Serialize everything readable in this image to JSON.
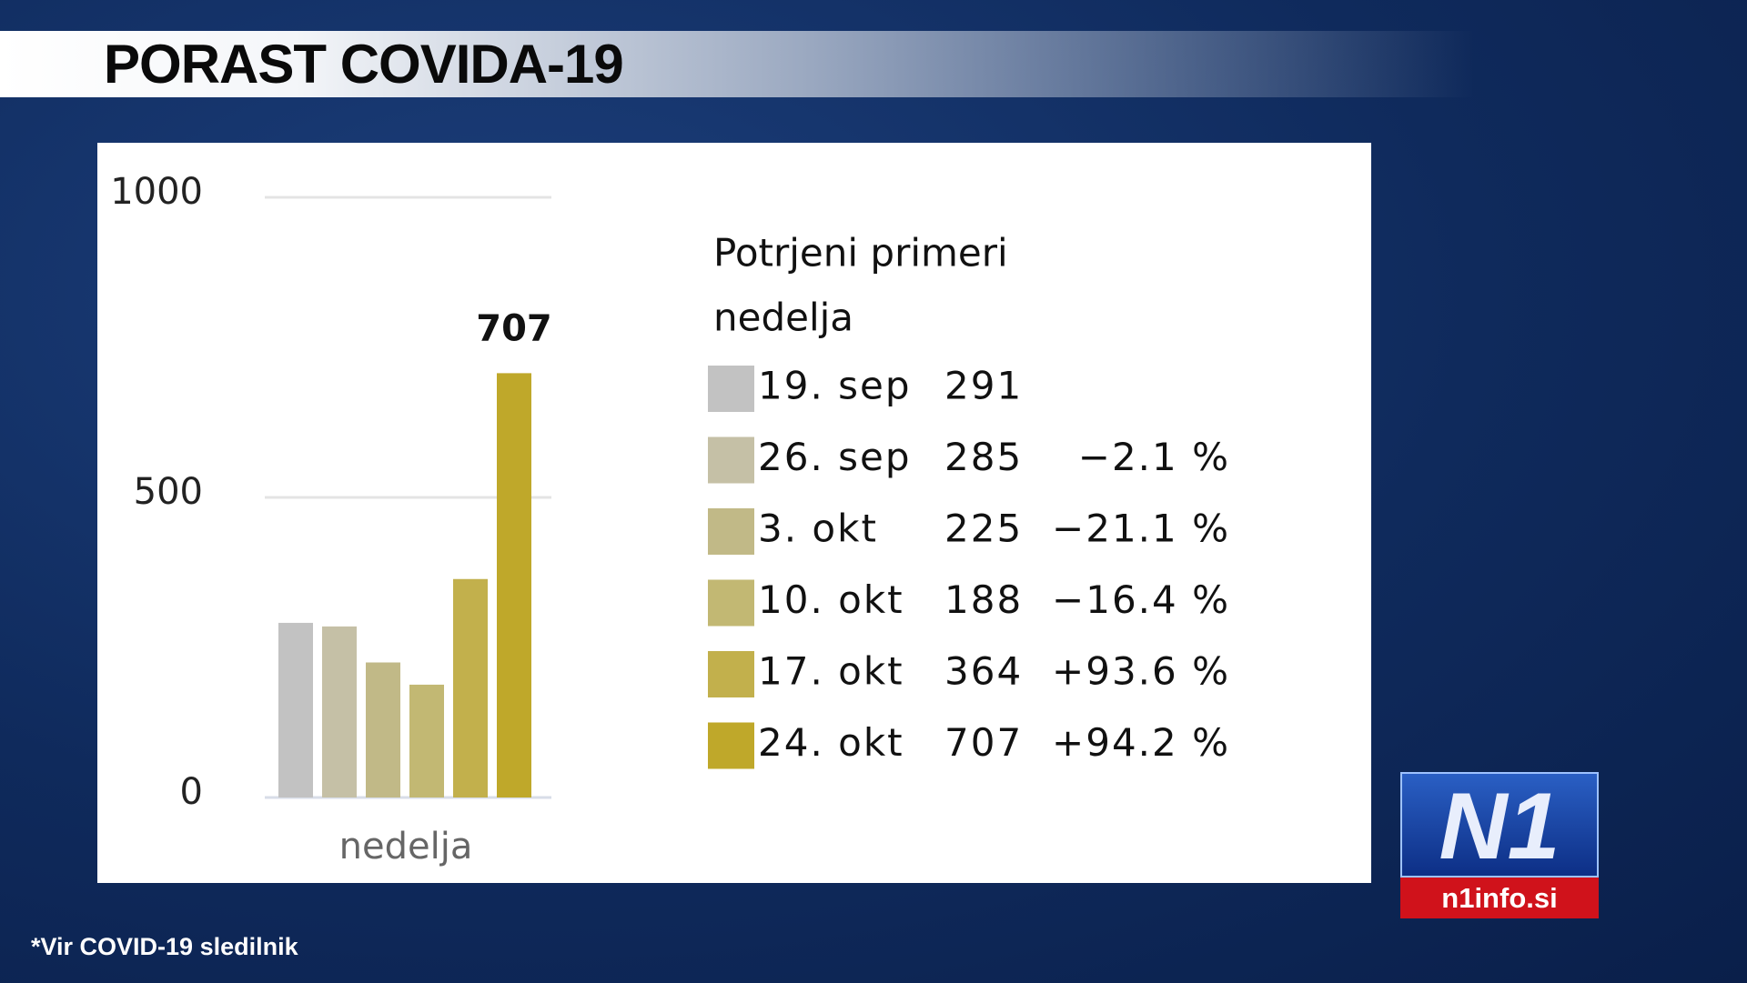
{
  "title": "PORAST COVIDA-19",
  "footnote": "*Vir COVID-19 sledilnik",
  "logo": {
    "mark": "N1",
    "site": "n1info.si"
  },
  "chart_data": {
    "type": "bar",
    "xlabel": "nedelja",
    "legend_title": "Potrjeni primeri",
    "legend_subtitle": "nedelja",
    "categories": [
      "19. sep",
      "26. sep",
      "3. okt",
      "10. okt",
      "17. okt",
      "24. okt"
    ],
    "values": [
      291,
      285,
      225,
      188,
      364,
      707
    ],
    "colors": [
      "#c2c2c2",
      "#c5c0a6",
      "#c1b987",
      "#c2b873",
      "#c2b04c",
      "#bfa82a"
    ],
    "changes": [
      null,
      "−2.1 %",
      "−21.1 %",
      "−16.4 %",
      "+93.6 %",
      "+94.2 %"
    ],
    "ylim": [
      0,
      1000
    ],
    "yticks": [
      0,
      500,
      1000
    ],
    "grid": true
  }
}
